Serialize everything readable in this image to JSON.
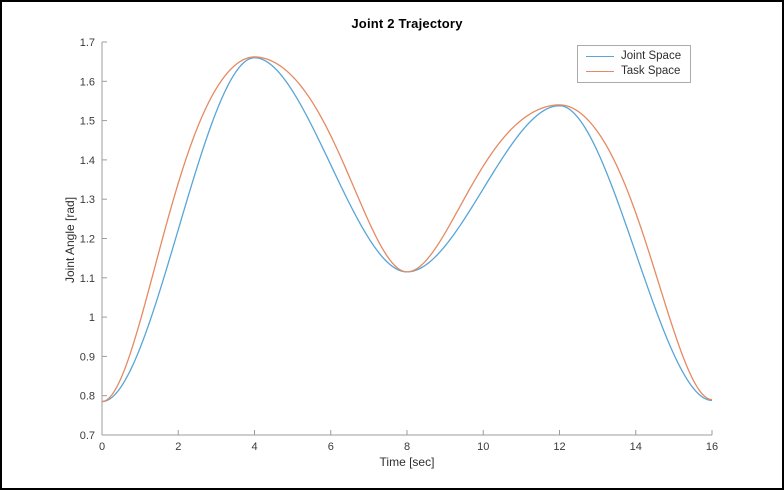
{
  "figure": {
    "background": "#ffffff",
    "border_color": "#000000",
    "axis_color": "#9c9c9c",
    "tick_label_color": "#3a3a3a"
  },
  "chart_data": {
    "type": "line",
    "title": "Joint 2 Trajectory",
    "xlabel": "Time [sec]",
    "ylabel": "Joint Angle [rad]",
    "xlim": [
      0,
      16
    ],
    "ylim": [
      0.7,
      1.7
    ],
    "xticks": [
      0,
      2,
      4,
      6,
      8,
      10,
      12,
      14,
      16
    ],
    "xtick_labels": [
      "0",
      "2",
      "4",
      "6",
      "8",
      "10",
      "12",
      "14",
      "16"
    ],
    "yticks": [
      0.7,
      0.8,
      0.9,
      1,
      1.1,
      1.2,
      1.3,
      1.4,
      1.5,
      1.6,
      1.7
    ],
    "ytick_labels": [
      "0.7",
      "0.8",
      "0.9",
      "1",
      "1.1",
      "1.2",
      "1.3",
      "1.4",
      "1.5",
      "1.6",
      "1.7"
    ],
    "grid": false,
    "legend": {
      "position": "top-right",
      "entries": [
        "Joint Space",
        "Task Space"
      ]
    },
    "series": [
      {
        "name": "Joint Space",
        "color": "#58a5d7",
        "lead": 0,
        "via_points": [
          [
            0,
            0.785
          ],
          [
            4,
            1.66
          ],
          [
            8,
            1.115
          ],
          [
            12,
            1.538
          ],
          [
            16,
            0.788
          ]
        ]
      },
      {
        "name": "Task Space",
        "color": "#e58a62",
        "lead": 0.09,
        "via_points": [
          [
            0,
            0.785
          ],
          [
            4,
            1.662
          ],
          [
            8,
            1.115
          ],
          [
            12,
            1.54
          ],
          [
            16,
            0.79
          ]
        ]
      }
    ]
  }
}
